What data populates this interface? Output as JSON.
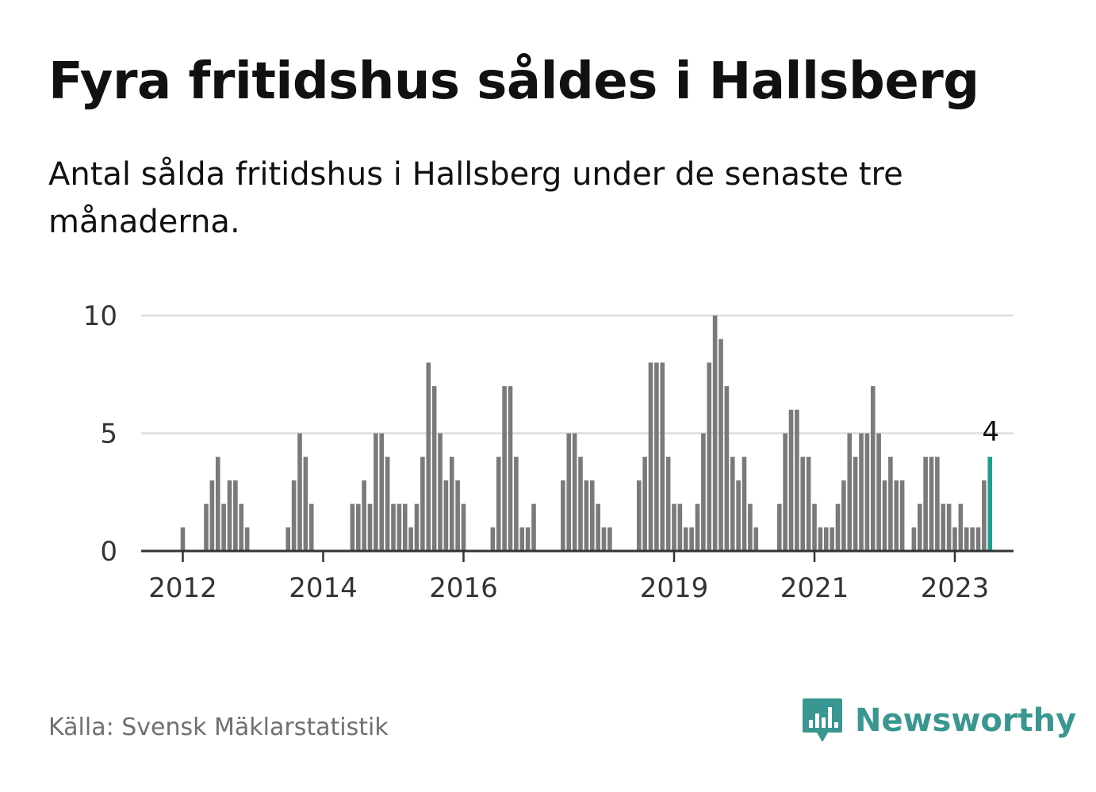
{
  "title": "Fyra fritidshus såldes i Hallsberg",
  "subtitle": "Antal sålda fritidshus i Hallsberg under de senaste tre månaderna.",
  "source": "Källa: Svensk Mäklarstatistik",
  "brand": {
    "name": "Newsworthy",
    "icon": "bar-chart-speech-bubble-icon"
  },
  "colors": {
    "bar": "#7a7a7c",
    "highlight": "#1f9e8e",
    "grid": "#dddddd",
    "axis": "#333333",
    "brand": "#3a9690"
  },
  "chart_data": {
    "type": "bar",
    "title": "",
    "xlabel": "",
    "ylabel": "",
    "ylim": [
      0,
      10
    ],
    "yticks": [
      0,
      5,
      10
    ],
    "xtick_labels": [
      "2012",
      "2014",
      "2016",
      "2019",
      "2021",
      "2023"
    ],
    "xtick_months": [
      0,
      24,
      48,
      84,
      108,
      132
    ],
    "start": "2012-01",
    "highlight_label": "4",
    "grid": true,
    "values": [
      1,
      0,
      0,
      0,
      2,
      3,
      4,
      2,
      3,
      3,
      2,
      1,
      0,
      0,
      0,
      0,
      0,
      0,
      1,
      3,
      5,
      4,
      2,
      0,
      0,
      0,
      0,
      0,
      0,
      2,
      2,
      3,
      2,
      5,
      5,
      4,
      2,
      2,
      2,
      1,
      2,
      4,
      8,
      7,
      5,
      3,
      4,
      3,
      2,
      0,
      0,
      0,
      0,
      1,
      4,
      7,
      7,
      4,
      1,
      1,
      2,
      0,
      0,
      0,
      0,
      3,
      5,
      5,
      4,
      3,
      3,
      2,
      1,
      1,
      0,
      0,
      0,
      0,
      3,
      4,
      8,
      8,
      8,
      4,
      2,
      2,
      1,
      1,
      2,
      5,
      8,
      10,
      9,
      7,
      4,
      3,
      4,
      2,
      1,
      0,
      0,
      0,
      2,
      5,
      6,
      6,
      4,
      4,
      2,
      1,
      1,
      1,
      2,
      3,
      5,
      4,
      5,
      5,
      7,
      5,
      3,
      4,
      3,
      3,
      0,
      1,
      2,
      4,
      4,
      4,
      2,
      2,
      1,
      2,
      1,
      1,
      1,
      3,
      4
    ]
  }
}
